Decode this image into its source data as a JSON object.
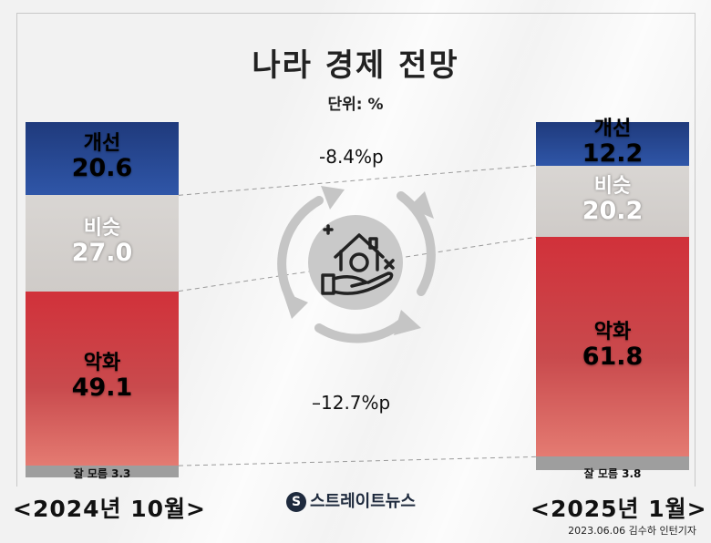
{
  "title": "나라 경제 전망",
  "unit": "단위: %",
  "brand": "스트레이트뉴스",
  "credit": "2023.06.06 김수하 인턴기자",
  "colors": {
    "improve": "#2a4c9a",
    "similar": "#d4d0cd",
    "worse": "#cf3a3f",
    "unknown": "#9e9e9e"
  },
  "icon": "recycle-house-hand-icon",
  "chart_data": {
    "type": "bar",
    "stacked": true,
    "categories": [
      "<2024년 10월>",
      "<2025년 1월>"
    ],
    "series": [
      {
        "name": "개선",
        "values": [
          20.6,
          12.2
        ]
      },
      {
        "name": "비슷",
        "values": [
          27.0,
          20.2
        ]
      },
      {
        "name": "악화",
        "values": [
          49.1,
          61.8
        ]
      },
      {
        "name": "잘 모름",
        "values": [
          3.3,
          3.8
        ]
      }
    ],
    "unknown_labels": [
      "잘 모름 3.3",
      "잘 모름 3.8"
    ],
    "annotations": [
      "-8.4%p",
      "–12.7%p"
    ],
    "ylim": [
      0,
      100
    ]
  }
}
